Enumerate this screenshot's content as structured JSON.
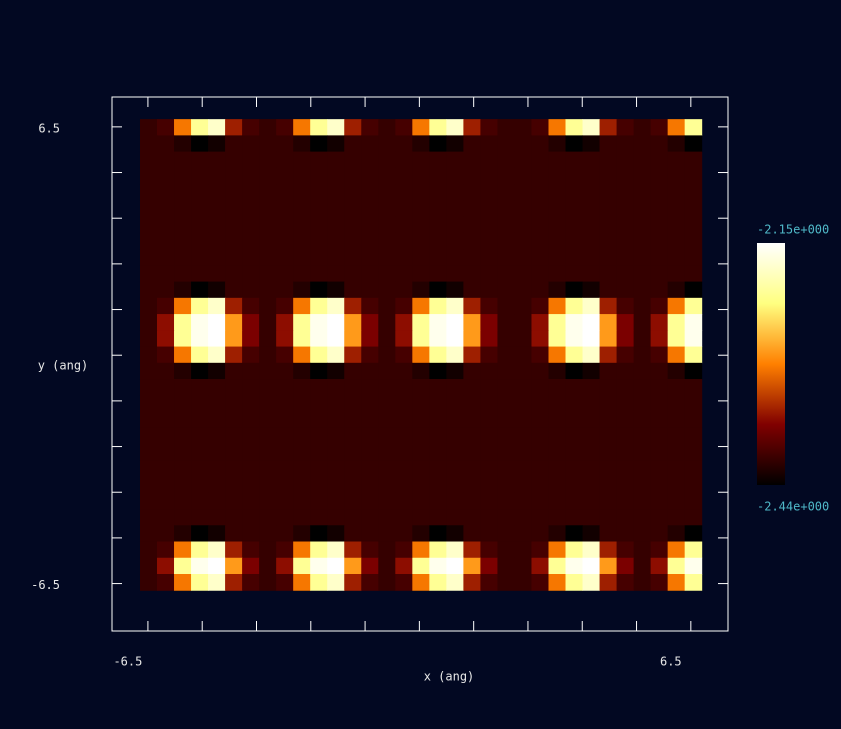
{
  "chart_data": {
    "type": "heatmap",
    "xlabel": "x (ang)",
    "ylabel": "y (ang)",
    "colormap": "afmhot",
    "xlim": [
      -7.36,
      7.39
    ],
    "ylim": [
      -7.85,
      7.35
    ],
    "x_range": [
      -6.69,
      6.76
    ],
    "y_range": [
      -6.69,
      6.72
    ],
    "xticks": [
      -6.5,
      {
        "value": -5.2,
        "label": null
      },
      {
        "value": -3.9,
        "label": null
      },
      {
        "value": -2.6,
        "label": null
      },
      {
        "value": -1.3,
        "label": null
      },
      {
        "value": 0,
        "label": null
      },
      {
        "value": 1.3,
        "label": null
      },
      {
        "value": 2.6,
        "label": null
      },
      {
        "value": 3.9,
        "label": null
      },
      {
        "value": 5.2,
        "label": null
      },
      6.5
    ],
    "yticks": [
      -6.5,
      {
        "value": -5.2,
        "label": null
      },
      {
        "value": -3.9,
        "label": null
      },
      {
        "value": -2.6,
        "label": null
      },
      {
        "value": -1.3,
        "label": null
      },
      {
        "value": 0,
        "label": null
      },
      {
        "value": 1.3,
        "label": null
      },
      {
        "value": 2.6,
        "label": null
      },
      {
        "value": 3.9,
        "label": null
      },
      {
        "value": 5.2,
        "label": null
      },
      6.5
    ],
    "zlim": [
      -2.44,
      -2.15
    ],
    "colorbar_ticks": [
      {
        "value": -2.15,
        "label": "-2.15e+000"
      },
      {
        "value": -2.44,
        "label": "-2.44e+000"
      }
    ],
    "values": [
      [
        -2.41,
        -2.4,
        -2.3,
        -2.21,
        -2.18,
        -2.35,
        -2.4,
        -2.41,
        -2.4,
        -2.3,
        -2.21,
        -2.18,
        -2.35,
        -2.4,
        -2.41,
        -2.4,
        -2.3,
        -2.21,
        -2.18,
        -2.35,
        -2.4,
        -2.41,
        -2.41,
        -2.4,
        -2.3,
        -2.21,
        -2.18,
        -2.35,
        -2.4,
        -2.41,
        -2.4,
        -2.3,
        -2.21
      ],
      [
        -2.41,
        -2.41,
        -2.42,
        -2.44,
        -2.43,
        -2.41,
        -2.41,
        -2.41,
        -2.41,
        -2.42,
        -2.44,
        -2.43,
        -2.41,
        -2.41,
        -2.41,
        -2.41,
        -2.42,
        -2.44,
        -2.43,
        -2.41,
        -2.41,
        -2.41,
        -2.41,
        -2.41,
        -2.42,
        -2.44,
        -2.43,
        -2.41,
        -2.41,
        -2.41,
        -2.41,
        -2.42,
        -2.44
      ],
      [
        -2.41,
        -2.41,
        -2.41,
        -2.41,
        -2.41,
        -2.41,
        -2.41,
        -2.41,
        -2.41,
        -2.41,
        -2.41,
        -2.41,
        -2.41,
        -2.41,
        -2.41,
        -2.41,
        -2.41,
        -2.41,
        -2.41,
        -2.41,
        -2.41,
        -2.41,
        -2.41,
        -2.41,
        -2.41,
        -2.41,
        -2.41,
        -2.41,
        -2.41,
        -2.41,
        -2.41,
        -2.41,
        -2.41
      ],
      [
        -2.41,
        -2.41,
        -2.41,
        -2.41,
        -2.41,
        -2.41,
        -2.41,
        -2.41,
        -2.41,
        -2.41,
        -2.41,
        -2.41,
        -2.41,
        -2.41,
        -2.41,
        -2.41,
        -2.41,
        -2.41,
        -2.41,
        -2.41,
        -2.41,
        -2.41,
        -2.41,
        -2.41,
        -2.41,
        -2.41,
        -2.41,
        -2.41,
        -2.41,
        -2.41,
        -2.41,
        -2.41,
        -2.41
      ],
      [
        -2.41,
        -2.41,
        -2.41,
        -2.41,
        -2.41,
        -2.41,
        -2.41,
        -2.41,
        -2.41,
        -2.41,
        -2.41,
        -2.41,
        -2.41,
        -2.41,
        -2.41,
        -2.41,
        -2.41,
        -2.41,
        -2.41,
        -2.41,
        -2.41,
        -2.41,
        -2.41,
        -2.41,
        -2.41,
        -2.41,
        -2.41,
        -2.41,
        -2.41,
        -2.41,
        -2.41,
        -2.41,
        -2.41
      ],
      [
        -2.41,
        -2.41,
        -2.41,
        -2.41,
        -2.41,
        -2.41,
        -2.41,
        -2.41,
        -2.41,
        -2.41,
        -2.41,
        -2.41,
        -2.41,
        -2.41,
        -2.41,
        -2.41,
        -2.41,
        -2.41,
        -2.41,
        -2.41,
        -2.41,
        -2.41,
        -2.41,
        -2.41,
        -2.41,
        -2.41,
        -2.41,
        -2.41,
        -2.41,
        -2.41,
        -2.41,
        -2.41,
        -2.41
      ],
      [
        -2.41,
        -2.41,
        -2.41,
        -2.41,
        -2.41,
        -2.41,
        -2.41,
        -2.41,
        -2.41,
        -2.41,
        -2.41,
        -2.41,
        -2.41,
        -2.41,
        -2.41,
        -2.41,
        -2.41,
        -2.41,
        -2.41,
        -2.41,
        -2.41,
        -2.41,
        -2.41,
        -2.41,
        -2.41,
        -2.41,
        -2.41,
        -2.41,
        -2.41,
        -2.41,
        -2.41,
        -2.41,
        -2.41
      ],
      [
        -2.41,
        -2.41,
        -2.41,
        -2.41,
        -2.41,
        -2.41,
        -2.41,
        -2.41,
        -2.41,
        -2.41,
        -2.41,
        -2.41,
        -2.41,
        -2.41,
        -2.41,
        -2.41,
        -2.41,
        -2.41,
        -2.41,
        -2.41,
        -2.41,
        -2.41,
        -2.41,
        -2.41,
        -2.41,
        -2.41,
        -2.41,
        -2.41,
        -2.41,
        -2.41,
        -2.41,
        -2.41,
        -2.41
      ],
      [
        -2.41,
        -2.41,
        -2.41,
        -2.41,
        -2.41,
        -2.41,
        -2.41,
        -2.41,
        -2.41,
        -2.41,
        -2.41,
        -2.41,
        -2.41,
        -2.41,
        -2.41,
        -2.41,
        -2.41,
        -2.41,
        -2.41,
        -2.41,
        -2.41,
        -2.41,
        -2.41,
        -2.41,
        -2.41,
        -2.41,
        -2.41,
        -2.41,
        -2.41,
        -2.41,
        -2.41,
        -2.41,
        -2.41
      ],
      [
        -2.41,
        -2.41,
        -2.41,
        -2.41,
        -2.41,
        -2.41,
        -2.41,
        -2.41,
        -2.41,
        -2.41,
        -2.41,
        -2.41,
        -2.41,
        -2.41,
        -2.41,
        -2.41,
        -2.41,
        -2.41,
        -2.41,
        -2.41,
        -2.41,
        -2.41,
        -2.41,
        -2.41,
        -2.41,
        -2.41,
        -2.41,
        -2.41,
        -2.41,
        -2.41,
        -2.41,
        -2.41,
        -2.41
      ],
      [
        -2.41,
        -2.41,
        -2.42,
        -2.44,
        -2.43,
        -2.41,
        -2.41,
        -2.41,
        -2.41,
        -2.42,
        -2.44,
        -2.43,
        -2.41,
        -2.41,
        -2.41,
        -2.41,
        -2.42,
        -2.44,
        -2.43,
        -2.41,
        -2.41,
        -2.41,
        -2.41,
        -2.41,
        -2.42,
        -2.44,
        -2.43,
        -2.41,
        -2.41,
        -2.41,
        -2.41,
        -2.42,
        -2.44
      ],
      [
        -2.41,
        -2.4,
        -2.3,
        -2.21,
        -2.18,
        -2.35,
        -2.4,
        -2.41,
        -2.4,
        -2.3,
        -2.21,
        -2.18,
        -2.35,
        -2.4,
        -2.41,
        -2.4,
        -2.3,
        -2.21,
        -2.18,
        -2.35,
        -2.4,
        -2.41,
        -2.41,
        -2.4,
        -2.3,
        -2.21,
        -2.18,
        -2.35,
        -2.4,
        -2.41,
        -2.4,
        -2.3,
        -2.21
      ],
      [
        -2.41,
        -2.36,
        -2.21,
        -2.16,
        -2.15,
        -2.28,
        -2.37,
        -2.41,
        -2.36,
        -2.21,
        -2.16,
        -2.15,
        -2.28,
        -2.37,
        -2.41,
        -2.36,
        -2.21,
        -2.16,
        -2.15,
        -2.28,
        -2.37,
        -2.41,
        -2.41,
        -2.36,
        -2.21,
        -2.16,
        -2.15,
        -2.28,
        -2.37,
        -2.41,
        -2.36,
        -2.21,
        -2.16
      ],
      [
        -2.41,
        -2.36,
        -2.21,
        -2.16,
        -2.15,
        -2.28,
        -2.37,
        -2.41,
        -2.36,
        -2.21,
        -2.16,
        -2.15,
        -2.28,
        -2.37,
        -2.41,
        -2.36,
        -2.21,
        -2.16,
        -2.15,
        -2.28,
        -2.37,
        -2.41,
        -2.41,
        -2.36,
        -2.21,
        -2.16,
        -2.15,
        -2.28,
        -2.37,
        -2.41,
        -2.36,
        -2.21,
        -2.16
      ],
      [
        -2.41,
        -2.4,
        -2.3,
        -2.21,
        -2.18,
        -2.35,
        -2.4,
        -2.41,
        -2.4,
        -2.3,
        -2.21,
        -2.18,
        -2.35,
        -2.4,
        -2.41,
        -2.4,
        -2.3,
        -2.21,
        -2.18,
        -2.35,
        -2.4,
        -2.41,
        -2.41,
        -2.4,
        -2.3,
        -2.21,
        -2.18,
        -2.35,
        -2.4,
        -2.41,
        -2.4,
        -2.3,
        -2.21
      ],
      [
        -2.41,
        -2.41,
        -2.42,
        -2.44,
        -2.43,
        -2.41,
        -2.41,
        -2.41,
        -2.41,
        -2.42,
        -2.44,
        -2.43,
        -2.41,
        -2.41,
        -2.41,
        -2.41,
        -2.42,
        -2.44,
        -2.43,
        -2.41,
        -2.41,
        -2.41,
        -2.41,
        -2.41,
        -2.42,
        -2.44,
        -2.43,
        -2.41,
        -2.41,
        -2.41,
        -2.41,
        -2.42,
        -2.44
      ],
      [
        -2.41,
        -2.41,
        -2.41,
        -2.41,
        -2.41,
        -2.41,
        -2.41,
        -2.41,
        -2.41,
        -2.41,
        -2.41,
        -2.41,
        -2.41,
        -2.41,
        -2.41,
        -2.41,
        -2.41,
        -2.41,
        -2.41,
        -2.41,
        -2.41,
        -2.41,
        -2.41,
        -2.41,
        -2.41,
        -2.41,
        -2.41,
        -2.41,
        -2.41,
        -2.41,
        -2.41,
        -2.41,
        -2.41
      ],
      [
        -2.41,
        -2.41,
        -2.41,
        -2.41,
        -2.41,
        -2.41,
        -2.41,
        -2.41,
        -2.41,
        -2.41,
        -2.41,
        -2.41,
        -2.41,
        -2.41,
        -2.41,
        -2.41,
        -2.41,
        -2.41,
        -2.41,
        -2.41,
        -2.41,
        -2.41,
        -2.41,
        -2.41,
        -2.41,
        -2.41,
        -2.41,
        -2.41,
        -2.41,
        -2.41,
        -2.41,
        -2.41,
        -2.41
      ],
      [
        -2.41,
        -2.41,
        -2.41,
        -2.41,
        -2.41,
        -2.41,
        -2.41,
        -2.41,
        -2.41,
        -2.41,
        -2.41,
        -2.41,
        -2.41,
        -2.41,
        -2.41,
        -2.41,
        -2.41,
        -2.41,
        -2.41,
        -2.41,
        -2.41,
        -2.41,
        -2.41,
        -2.41,
        -2.41,
        -2.41,
        -2.41,
        -2.41,
        -2.41,
        -2.41,
        -2.41,
        -2.41,
        -2.41
      ],
      [
        -2.41,
        -2.41,
        -2.41,
        -2.41,
        -2.41,
        -2.41,
        -2.41,
        -2.41,
        -2.41,
        -2.41,
        -2.41,
        -2.41,
        -2.41,
        -2.41,
        -2.41,
        -2.41,
        -2.41,
        -2.41,
        -2.41,
        -2.41,
        -2.41,
        -2.41,
        -2.41,
        -2.41,
        -2.41,
        -2.41,
        -2.41,
        -2.41,
        -2.41,
        -2.41,
        -2.41,
        -2.41,
        -2.41
      ],
      [
        -2.41,
        -2.41,
        -2.41,
        -2.41,
        -2.41,
        -2.41,
        -2.41,
        -2.41,
        -2.41,
        -2.41,
        -2.41,
        -2.41,
        -2.41,
        -2.41,
        -2.41,
        -2.41,
        -2.41,
        -2.41,
        -2.41,
        -2.41,
        -2.41,
        -2.41,
        -2.41,
        -2.41,
        -2.41,
        -2.41,
        -2.41,
        -2.41,
        -2.41,
        -2.41,
        -2.41,
        -2.41,
        -2.41
      ],
      [
        -2.41,
        -2.41,
        -2.41,
        -2.41,
        -2.41,
        -2.41,
        -2.41,
        -2.41,
        -2.41,
        -2.41,
        -2.41,
        -2.41,
        -2.41,
        -2.41,
        -2.41,
        -2.41,
        -2.41,
        -2.41,
        -2.41,
        -2.41,
        -2.41,
        -2.41,
        -2.41,
        -2.41,
        -2.41,
        -2.41,
        -2.41,
        -2.41,
        -2.41,
        -2.41,
        -2.41,
        -2.41,
        -2.41
      ],
      [
        -2.41,
        -2.41,
        -2.41,
        -2.41,
        -2.41,
        -2.41,
        -2.41,
        -2.41,
        -2.41,
        -2.41,
        -2.41,
        -2.41,
        -2.41,
        -2.41,
        -2.41,
        -2.41,
        -2.41,
        -2.41,
        -2.41,
        -2.41,
        -2.41,
        -2.41,
        -2.41,
        -2.41,
        -2.41,
        -2.41,
        -2.41,
        -2.41,
        -2.41,
        -2.41,
        -2.41,
        -2.41,
        -2.41
      ],
      [
        -2.41,
        -2.41,
        -2.41,
        -2.41,
        -2.41,
        -2.41,
        -2.41,
        -2.41,
        -2.41,
        -2.41,
        -2.41,
        -2.41,
        -2.41,
        -2.41,
        -2.41,
        -2.41,
        -2.41,
        -2.41,
        -2.41,
        -2.41,
        -2.41,
        -2.41,
        -2.41,
        -2.41,
        -2.41,
        -2.41,
        -2.41,
        -2.41,
        -2.41,
        -2.41,
        -2.41,
        -2.41,
        -2.41
      ],
      [
        -2.41,
        -2.41,
        -2.41,
        -2.41,
        -2.41,
        -2.41,
        -2.41,
        -2.41,
        -2.41,
        -2.41,
        -2.41,
        -2.41,
        -2.41,
        -2.41,
        -2.41,
        -2.41,
        -2.41,
        -2.41,
        -2.41,
        -2.41,
        -2.41,
        -2.41,
        -2.41,
        -2.41,
        -2.41,
        -2.41,
        -2.41,
        -2.41,
        -2.41,
        -2.41,
        -2.41,
        -2.41,
        -2.41
      ],
      [
        -2.41,
        -2.41,
        -2.42,
        -2.44,
        -2.43,
        -2.41,
        -2.41,
        -2.41,
        -2.41,
        -2.42,
        -2.44,
        -2.43,
        -2.41,
        -2.41,
        -2.41,
        -2.41,
        -2.42,
        -2.44,
        -2.43,
        -2.41,
        -2.41,
        -2.41,
        -2.41,
        -2.41,
        -2.42,
        -2.44,
        -2.43,
        -2.41,
        -2.41,
        -2.41,
        -2.41,
        -2.42,
        -2.44
      ],
      [
        -2.41,
        -2.4,
        -2.3,
        -2.21,
        -2.18,
        -2.35,
        -2.4,
        -2.41,
        -2.4,
        -2.3,
        -2.21,
        -2.18,
        -2.35,
        -2.4,
        -2.41,
        -2.4,
        -2.3,
        -2.21,
        -2.18,
        -2.35,
        -2.4,
        -2.41,
        -2.41,
        -2.4,
        -2.3,
        -2.21,
        -2.18,
        -2.35,
        -2.4,
        -2.41,
        -2.4,
        -2.3,
        -2.21
      ],
      [
        -2.41,
        -2.36,
        -2.21,
        -2.16,
        -2.15,
        -2.28,
        -2.37,
        -2.41,
        -2.36,
        -2.21,
        -2.16,
        -2.15,
        -2.28,
        -2.37,
        -2.41,
        -2.36,
        -2.21,
        -2.16,
        -2.15,
        -2.28,
        -2.37,
        -2.41,
        -2.41,
        -2.36,
        -2.21,
        -2.16,
        -2.15,
        -2.28,
        -2.37,
        -2.41,
        -2.36,
        -2.21,
        -2.16
      ],
      [
        -2.41,
        -2.4,
        -2.3,
        -2.21,
        -2.18,
        -2.35,
        -2.4,
        -2.41,
        -2.4,
        -2.3,
        -2.21,
        -2.18,
        -2.35,
        -2.4,
        -2.41,
        -2.4,
        -2.3,
        -2.21,
        -2.18,
        -2.35,
        -2.4,
        -2.41,
        -2.41,
        -2.4,
        -2.3,
        -2.21,
        -2.18,
        -2.35,
        -2.4,
        -2.41,
        -2.4,
        -2.3,
        -2.21
      ]
    ]
  }
}
